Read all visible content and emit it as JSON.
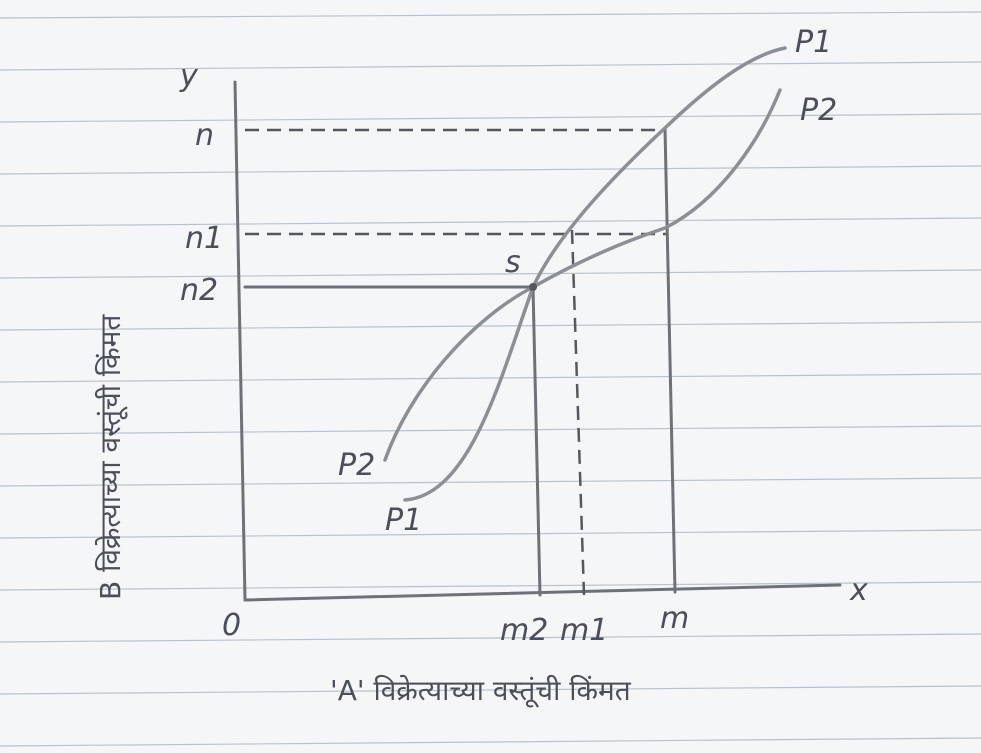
{
  "axes": {
    "y_letter": "y",
    "x_letter": "x",
    "origin": "0",
    "y_label": "B विक्रेत्याच्या वस्तूंची किंमत",
    "x_label": "'A' विक्रेत्याच्या वस्तूंची किंमत"
  },
  "y_marks": [
    "n",
    "n1",
    "n2"
  ],
  "x_marks": [
    "m2",
    "m1",
    "m"
  ],
  "point": "s",
  "curves": [
    {
      "start": "P1",
      "end": "P1"
    },
    {
      "start": "P2",
      "end": "P2"
    }
  ]
}
